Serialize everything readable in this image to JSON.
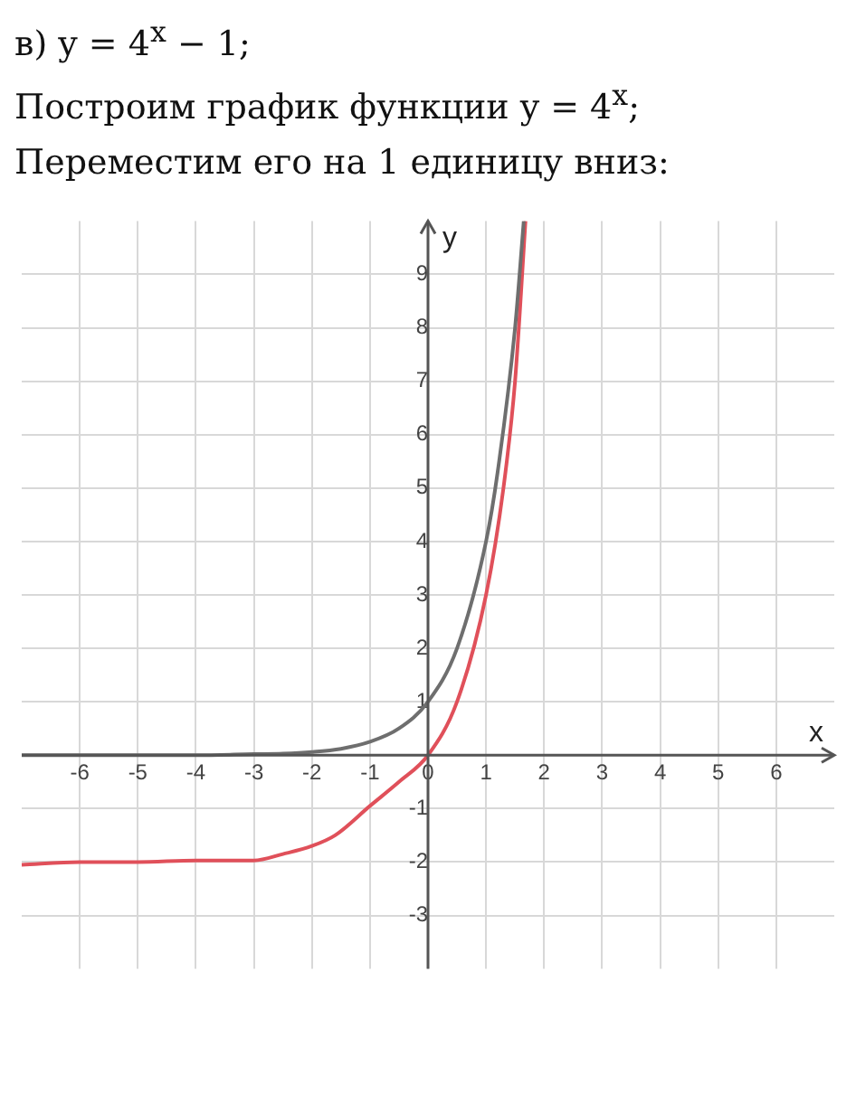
{
  "chart_data": {
    "type": "line",
    "title": "в) y = 4$^{x}$ − 1;",
    "annotations": [
      "Построим график функции y = 4$^{x}$;",
      "Переместим его на 1 единицу вниз:"
    ],
    "xlabel": "x",
    "ylabel": "y",
    "xlim": [
      -7,
      7
    ],
    "ylim": [
      -4,
      10
    ],
    "xticks": [
      -6,
      -5,
      -4,
      -3,
      -2,
      -1,
      0,
      1,
      2,
      3,
      4,
      5,
      6
    ],
    "yticks": [
      -3,
      -2,
      -1,
      {
        "value": 0,
        "label": null
      },
      1,
      2,
      3,
      4,
      5,
      6,
      7,
      8,
      9
    ],
    "grid": true,
    "legend": false,
    "marker": "none",
    "line_style": "solid",
    "series": [
      {
        "color": "#6e6e6e",
        "x": [
          -7,
          -6,
          -5,
          -4,
          -3,
          -2.5,
          -2,
          -1.5,
          -1,
          -0.5,
          0,
          0.5,
          1,
          1.2,
          1.5,
          1.65
        ],
        "values": [
          0,
          0,
          0,
          0,
          0.02,
          0.03,
          0.06,
          0.12,
          0.25,
          0.5,
          1,
          2,
          4,
          5.3,
          8,
          10
        ]
      },
      {
        "color": "#e0505a",
        "x": [
          -7,
          -6,
          -5,
          -4,
          -3,
          -2.5,
          -2,
          -1.6,
          -1,
          -0.5,
          0,
          0.5,
          1,
          1.3,
          1.5,
          1.68
        ],
        "values": [
          -2.05,
          -2,
          -2,
          -1.97,
          -1.97,
          -1.85,
          -1.7,
          -1.5,
          -0.95,
          -0.5,
          0,
          1,
          3,
          5,
          7,
          10
        ]
      }
    ]
  }
}
